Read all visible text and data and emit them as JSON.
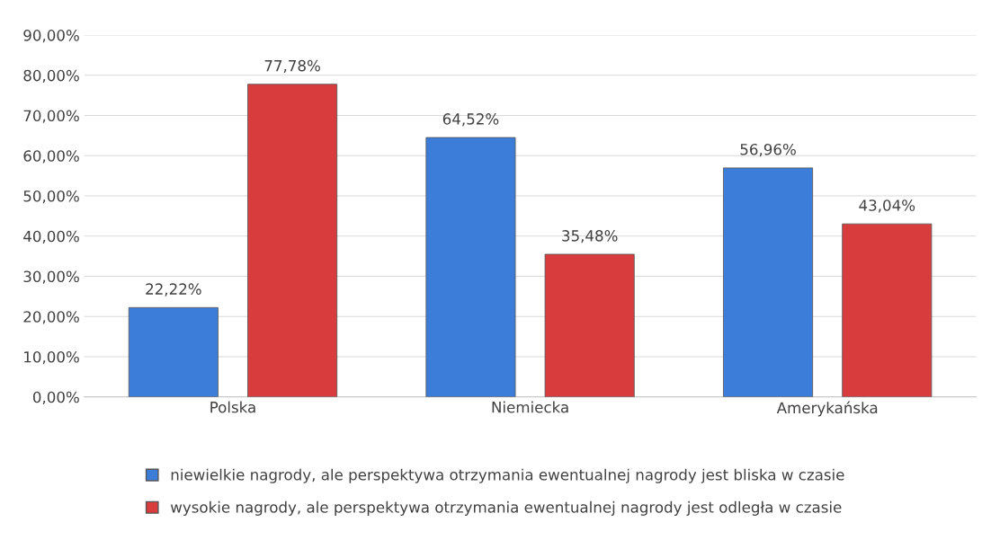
{
  "chart_data": {
    "type": "bar",
    "categories": [
      "Polska",
      "Niemiecka",
      "Amerykańska"
    ],
    "series": [
      {
        "name": "niewielkie nagrody, ale perspektywa otrzymania ewentualnej nagrody jest bliska w czasie",
        "color": "#3b7dd8",
        "values": [
          22.22,
          64.52,
          56.96
        ],
        "value_labels": [
          "22,22%",
          "64,52%",
          "56,96%"
        ]
      },
      {
        "name": "wysokie nagrody, ale perspektywa otrzymania ewentualnej nagrody jest odległa w czasie",
        "color": "#d83c3c",
        "values": [
          77.78,
          35.48,
          43.04
        ],
        "value_labels": [
          "77,78%",
          "35,48%",
          "43,04%"
        ]
      }
    ],
    "ylim": [
      0,
      90
    ],
    "yticks": [
      {
        "value": 0,
        "label": "0,00%"
      },
      {
        "value": 10,
        "label": "10,00%"
      },
      {
        "value": 20,
        "label": "20,00%"
      },
      {
        "value": 30,
        "label": "30,00%"
      },
      {
        "value": 40,
        "label": "40,00%"
      },
      {
        "value": 50,
        "label": "50,00%"
      },
      {
        "value": 60,
        "label": "60,00%"
      },
      {
        "value": 70,
        "label": "70,00%"
      },
      {
        "value": 80,
        "label": "80,00%"
      },
      {
        "value": 90,
        "label": "90,00%"
      }
    ],
    "grid": "y",
    "legend": "bottom"
  }
}
